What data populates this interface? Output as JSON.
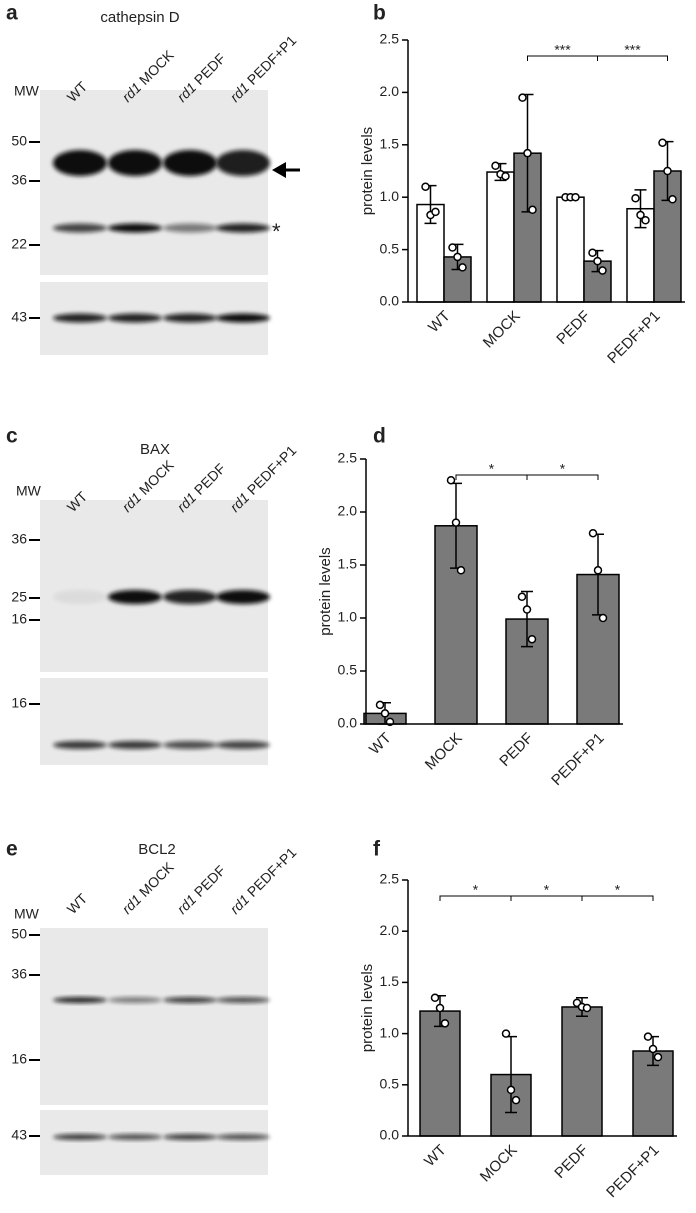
{
  "blots": [
    {
      "panel": "a",
      "title": "cathepsin D",
      "mw_label": "MW",
      "lanes": [
        {
          "text": "WT"
        },
        {
          "italic": "rd1",
          "text": "MOCK"
        },
        {
          "italic": "rd1",
          "text": "PEDF"
        },
        {
          "italic": "rd1",
          "text": "PEDF+P1"
        }
      ],
      "markers": [
        50,
        36,
        22,
        43
      ],
      "note": "*"
    },
    {
      "panel": "c",
      "title": "BAX",
      "mw_label": "MW",
      "lanes": [
        {
          "text": "WT"
        },
        {
          "italic": "rd1",
          "text": "MOCK"
        },
        {
          "italic": "rd1",
          "text": "PEDF"
        },
        {
          "italic": "rd1",
          "text": "PEDF+P1"
        }
      ],
      "markers": [
        36,
        25,
        16,
        16
      ]
    },
    {
      "panel": "e",
      "title": "BCL2",
      "mw_label": "MW",
      "lanes": [
        {
          "text": "WT"
        },
        {
          "italic": "rd1",
          "text": "MOCK"
        },
        {
          "italic": "rd1",
          "text": "PEDF"
        },
        {
          "italic": "rd1",
          "text": "PEDF+P1"
        }
      ],
      "markers": [
        50,
        36,
        16,
        43
      ]
    }
  ],
  "chart_data": [
    {
      "type": "bar",
      "panel": "b",
      "y_label": "protein levels",
      "categories": [
        "WT",
        "MOCK",
        "PEDF",
        "PEDF+P1"
      ],
      "series": [
        {
          "color": "#ffffff",
          "values": [
            0.93,
            1.24,
            1.0,
            0.89
          ],
          "errors": [
            0.18,
            0.08,
            0.02,
            0.18
          ],
          "points": [
            [
              1.1,
              0.83,
              0.86
            ],
            [
              1.3,
              1.22,
              1.2
            ],
            [
              1.0,
              1.0,
              1.0
            ],
            [
              0.99,
              0.83,
              0.78
            ]
          ]
        },
        {
          "color": "#7a7a7a",
          "values": [
            0.43,
            1.42,
            0.39,
            1.25
          ],
          "errors": [
            0.12,
            0.56,
            0.1,
            0.28
          ],
          "points": [
            [
              0.52,
              0.43,
              0.33
            ],
            [
              1.95,
              1.42,
              0.88
            ],
            [
              0.47,
              0.39,
              0.3
            ],
            [
              1.52,
              1.25,
              0.98
            ]
          ]
        }
      ],
      "brackets": [
        {
          "series": 1,
          "from": 1,
          "to": 2,
          "label": "***"
        },
        {
          "series": 1,
          "from": 2,
          "to": 3,
          "label": "***"
        }
      ],
      "ylim": [
        0,
        2.5
      ],
      "yticks": [
        {
          "value": 0,
          "label": "0.0"
        },
        {
          "value": 0.5,
          "label": "0.5"
        },
        {
          "value": 1,
          "label": "1.0"
        },
        {
          "value": 1.5,
          "label": "1.5"
        },
        {
          "value": 2,
          "label": "2.0"
        },
        {
          "value": 2.5,
          "label": "2.5"
        }
      ]
    },
    {
      "type": "bar",
      "panel": "d",
      "y_label": "protein levels",
      "categories": [
        "WT",
        "MOCK",
        "PEDF",
        "PEDF+P1"
      ],
      "series": [
        {
          "color": "#7a7a7a",
          "values": [
            0.1,
            1.87,
            0.99,
            1.41
          ],
          "errors": [
            0.1,
            0.4,
            0.26,
            0.38
          ],
          "points": [
            [
              0.18,
              0.1,
              0.02
            ],
            [
              2.3,
              1.9,
              1.45
            ],
            [
              1.2,
              1.08,
              0.8
            ],
            [
              1.8,
              1.45,
              1.0
            ]
          ]
        }
      ],
      "brackets": [
        {
          "series": 0,
          "from": 1,
          "to": 2,
          "label": "*"
        },
        {
          "series": 0,
          "from": 2,
          "to": 3,
          "label": "*"
        }
      ],
      "ylim": [
        0,
        2.5
      ],
      "yticks": [
        {
          "value": 0,
          "label": "0.0"
        },
        {
          "value": 0.5,
          "label": "0.5"
        },
        {
          "value": 1,
          "label": "1.0"
        },
        {
          "value": 1.5,
          "label": "1.5"
        },
        {
          "value": 2,
          "label": "2.0"
        },
        {
          "value": 2.5,
          "label": "2.5"
        }
      ]
    },
    {
      "type": "bar",
      "panel": "f",
      "y_label": "protein levels",
      "categories": [
        "WT",
        "MOCK",
        "PEDF",
        "PEDF+P1"
      ],
      "series": [
        {
          "color": "#7a7a7a",
          "values": [
            1.22,
            0.6,
            1.26,
            0.83
          ],
          "errors": [
            0.15,
            0.37,
            0.09,
            0.14
          ],
          "points": [
            [
              1.35,
              1.25,
              1.1
            ],
            [
              1.0,
              0.45,
              0.35
            ],
            [
              1.3,
              1.26,
              1.25
            ],
            [
              0.97,
              0.85,
              0.77
            ]
          ]
        }
      ],
      "brackets": [
        {
          "series": 0,
          "from": 0,
          "to": 1,
          "label": "*"
        },
        {
          "series": 0,
          "from": 1,
          "to": 2,
          "label": "*"
        },
        {
          "series": 0,
          "from": 2,
          "to": 3,
          "label": "*"
        }
      ],
      "ylim": [
        0,
        2.5
      ],
      "yticks": [
        {
          "value": 0,
          "label": "0.0"
        },
        {
          "value": 0.5,
          "label": "0.5"
        },
        {
          "value": 1,
          "label": "1.0"
        },
        {
          "value": 1.5,
          "label": "1.5"
        },
        {
          "value": 2,
          "label": "2.0"
        },
        {
          "value": 2.5,
          "label": "2.5"
        }
      ]
    }
  ]
}
